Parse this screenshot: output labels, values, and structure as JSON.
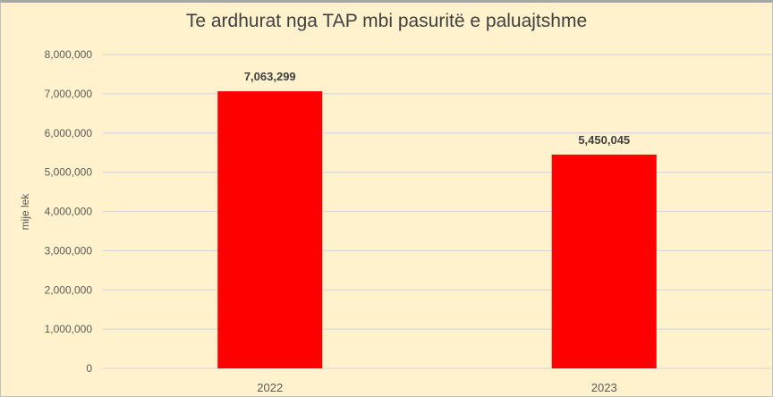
{
  "chart_data": {
    "type": "bar",
    "title": "Te ardhurat nga TAP mbi pasuritë e paluajtshme",
    "xlabel": "",
    "ylabel": "mije lek",
    "categories": [
      "2022",
      "2023"
    ],
    "values": [
      7063299,
      5450045
    ],
    "data_labels": [
      "7,063,299",
      "5,450,045"
    ],
    "ylim": [
      0,
      8000000
    ],
    "yticks": [
      0,
      1000000,
      2000000,
      3000000,
      4000000,
      5000000,
      6000000,
      7000000,
      8000000
    ],
    "ytick_labels": [
      "0",
      "1,000,000",
      "2,000,000",
      "3,000,000",
      "4,000,000",
      "5,000,000",
      "6,000,000",
      "7,000,000",
      "8,000,000"
    ],
    "grid": true,
    "legend": "none",
    "colors": {
      "bar": "#FF0000",
      "background": "#FFF2CC",
      "grid": "#D9D9D9"
    }
  }
}
